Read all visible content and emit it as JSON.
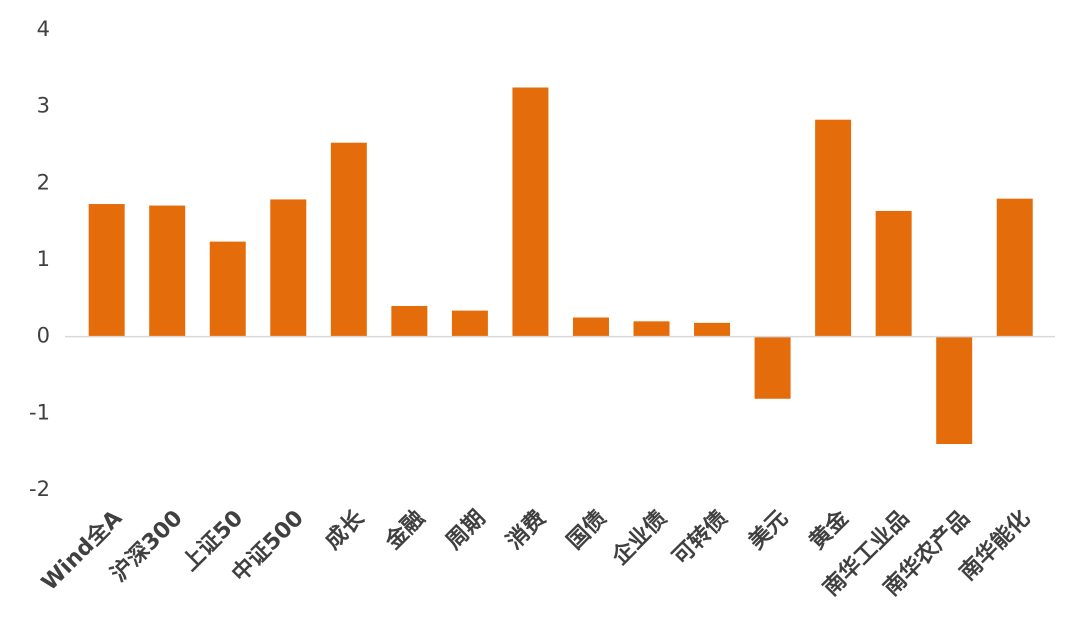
{
  "chart_data": {
    "type": "bar",
    "categories": [
      "Wind全A",
      "沪深300",
      "上证50",
      "中证500",
      "成长",
      "金融",
      "周期",
      "消费",
      "国债",
      "企业债",
      "可转债",
      "美元",
      "黄金",
      "南华工业品",
      "南华农产品",
      "南华能化"
    ],
    "values": [
      1.73,
      1.71,
      1.24,
      1.79,
      2.53,
      0.4,
      0.34,
      3.25,
      0.25,
      0.2,
      0.18,
      -0.81,
      2.83,
      1.64,
      -1.4,
      1.8
    ],
    "color": "#e46c0a",
    "ylim": [
      -2,
      4
    ],
    "yticks": [
      -2,
      -1,
      0,
      1,
      2,
      3,
      4
    ],
    "grid": false
  }
}
